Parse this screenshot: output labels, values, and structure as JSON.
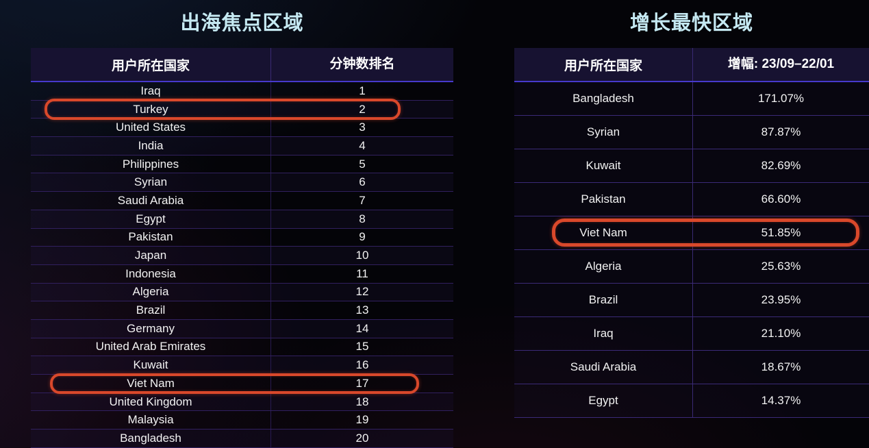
{
  "colors": {
    "title_text": "#c5e9f2",
    "header_bg": "#171231",
    "header_underline": "#4739cc",
    "row_separator": "#31205f",
    "highlight_border": "#d9482b",
    "background": "#040408"
  },
  "chart_data": [
    {
      "type": "table",
      "title": "出海焦点区域",
      "columns": [
        "用户所在国家",
        "分钟数排名"
      ],
      "rows": [
        [
          "Iraq",
          "1"
        ],
        [
          "Turkey",
          "2"
        ],
        [
          "United States",
          "3"
        ],
        [
          "India",
          "4"
        ],
        [
          "Philippines",
          "5"
        ],
        [
          "Syrian",
          "6"
        ],
        [
          "Saudi Arabia",
          "7"
        ],
        [
          "Egypt",
          "8"
        ],
        [
          "Pakistan",
          "9"
        ],
        [
          "Japan",
          "10"
        ],
        [
          "Indonesia",
          "11"
        ],
        [
          "Algeria",
          "12"
        ],
        [
          "Brazil",
          "13"
        ],
        [
          "Germany",
          "14"
        ],
        [
          "United Arab Emirates",
          "15"
        ],
        [
          "Kuwait",
          "16"
        ],
        [
          "Viet Nam",
          "17"
        ],
        [
          "United Kingdom",
          "18"
        ],
        [
          "Malaysia",
          "19"
        ],
        [
          "Bangladesh",
          "20"
        ]
      ],
      "highlighted_rows": [
        1,
        16
      ],
      "legend_position": "none",
      "grid": true
    },
    {
      "type": "table",
      "title": "增长最快区域",
      "columns": [
        "用户所在国家",
        "增幅: 23/09–22/01"
      ],
      "rows": [
        [
          "Bangladesh",
          "171.07%"
        ],
        [
          "Syrian",
          "87.87%"
        ],
        [
          "Kuwait",
          "82.69%"
        ],
        [
          "Pakistan",
          "66.60%"
        ],
        [
          "Viet Nam",
          "51.85%"
        ],
        [
          "Algeria",
          "25.63%"
        ],
        [
          "Brazil",
          "23.95%"
        ],
        [
          "Iraq",
          "21.10%"
        ],
        [
          "Saudi Arabia",
          "18.67%"
        ],
        [
          "Egypt",
          "14.37%"
        ]
      ],
      "highlighted_rows": [
        4
      ],
      "legend_position": "none",
      "grid": true
    }
  ]
}
